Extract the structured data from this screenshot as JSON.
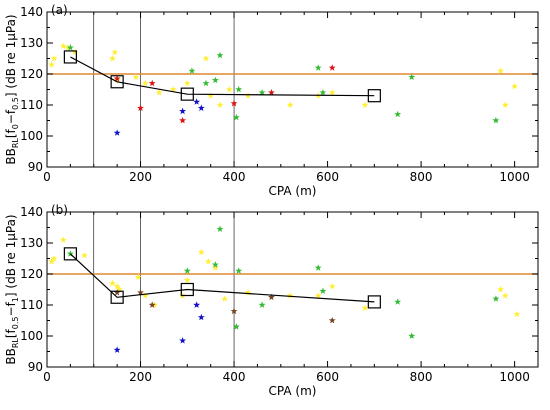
{
  "colors": {
    "yellow": "#ffee33",
    "green": "#33bb33",
    "red": "#dd1111",
    "blue": "#1111cc",
    "brown": "#774422",
    "reference": "#dd8833",
    "mean": "#000000"
  },
  "chart_data": [
    {
      "type": "scatter",
      "panel_label": "(a)",
      "xlabel": "CPA (m)",
      "ylabel": "BB",
      "ylabel_sub": "RL",
      "ylabel_range": "[f",
      "ylabel_range_sub1": "0",
      "ylabel_range_mid": "−f",
      "ylabel_range_sub2": "0.5",
      "ylabel_range_end": "]",
      "ylabel_units": "(dB re 1μPa)",
      "xlim": [
        0,
        1050
      ],
      "ylim": [
        90,
        140
      ],
      "xticks": [
        0,
        200,
        400,
        600,
        800,
        1000
      ],
      "yticks": [
        90,
        100,
        110,
        120,
        130,
        140
      ],
      "vertical_lines": [
        100,
        200,
        400
      ],
      "reference_line": 120,
      "mean_curve": {
        "x": [
          50,
          150,
          300,
          700
        ],
        "y": [
          125.5,
          117.5,
          113.5,
          113
        ]
      },
      "series": [
        {
          "color_key": "yellow",
          "points": [
            [
              10,
              123
            ],
            [
              15,
              125
            ],
            [
              35,
              129
            ],
            [
              45,
              128.5
            ],
            [
              60,
              127
            ],
            [
              140,
              125
            ],
            [
              145,
              127
            ],
            [
              150,
              118
            ],
            [
              190,
              119
            ],
            [
              210,
              117
            ],
            [
              240,
              114
            ],
            [
              270,
              115
            ],
            [
              300,
              117
            ],
            [
              340,
              125
            ],
            [
              350,
              113
            ],
            [
              370,
              110
            ],
            [
              390,
              115
            ],
            [
              430,
              113
            ],
            [
              520,
              110
            ],
            [
              580,
              113
            ],
            [
              610,
              114
            ],
            [
              680,
              110
            ],
            [
              970,
              121
            ],
            [
              980,
              110
            ],
            [
              1000,
              116
            ]
          ]
        },
        {
          "color_key": "green",
          "points": [
            [
              50,
              128.5
            ],
            [
              310,
              121
            ],
            [
              340,
              117
            ],
            [
              360,
              118
            ],
            [
              370,
              126
            ],
            [
              405,
              106
            ],
            [
              410,
              115
            ],
            [
              460,
              114
            ],
            [
              580,
              122
            ],
            [
              590,
              114
            ],
            [
              750,
              107
            ],
            [
              780,
              119
            ],
            [
              960,
              105
            ]
          ]
        },
        {
          "color_key": "red",
          "points": [
            [
              150,
              118.5
            ],
            [
              200,
              109
            ],
            [
              225,
              117
            ],
            [
              290,
              105
            ],
            [
              400,
              110.5
            ],
            [
              480,
              114
            ],
            [
              610,
              122
            ]
          ]
        },
        {
          "color_key": "blue",
          "points": [
            [
              150,
              101
            ],
            [
              290,
              108
            ],
            [
              320,
              111
            ],
            [
              330,
              109
            ]
          ]
        }
      ]
    },
    {
      "type": "scatter",
      "panel_label": "(b)",
      "xlabel": "CPA (m)",
      "ylabel": "BB",
      "ylabel_sub": "RL",
      "ylabel_range": "[f",
      "ylabel_range_sub1": "0.5",
      "ylabel_range_mid": "−f",
      "ylabel_range_sub2": "1",
      "ylabel_range_end": "]",
      "ylabel_units": "(dB re 1μPa)",
      "xlim": [
        0,
        1050
      ],
      "ylim": [
        90,
        140
      ],
      "xticks": [
        0,
        200,
        400,
        600,
        800,
        1000
      ],
      "yticks": [
        90,
        100,
        110,
        120,
        130,
        140
      ],
      "vertical_lines": [
        100,
        200,
        400
      ],
      "reference_line": 120,
      "mean_curve": {
        "x": [
          50,
          150,
          300,
          700
        ],
        "y": [
          126.5,
          112.5,
          115,
          111
        ]
      },
      "series": [
        {
          "color_key": "yellow",
          "points": [
            [
              10,
              124
            ],
            [
              15,
              125
            ],
            [
              35,
              131
            ],
            [
              80,
              126
            ],
            [
              140,
              117
            ],
            [
              150,
              116
            ],
            [
              155,
              115
            ],
            [
              195,
              119
            ],
            [
              210,
              113
            ],
            [
              230,
              110
            ],
            [
              290,
              113
            ],
            [
              300,
              118
            ],
            [
              330,
              127
            ],
            [
              345,
              124
            ],
            [
              360,
              122
            ],
            [
              380,
              112
            ],
            [
              430,
              114
            ],
            [
              520,
              113
            ],
            [
              580,
              113
            ],
            [
              610,
              116
            ],
            [
              680,
              109
            ],
            [
              970,
              115
            ],
            [
              980,
              113
            ],
            [
              1005,
              107
            ]
          ]
        },
        {
          "color_key": "green",
          "points": [
            [
              50,
              126.5
            ],
            [
              300,
              121
            ],
            [
              360,
              123
            ],
            [
              370,
              134.5
            ],
            [
              405,
              103
            ],
            [
              410,
              121
            ],
            [
              460,
              110
            ],
            [
              580,
              122
            ],
            [
              590,
              114.5
            ],
            [
              750,
              111
            ],
            [
              780,
              100
            ],
            [
              960,
              112
            ]
          ]
        },
        {
          "color_key": "brown",
          "points": [
            [
              150,
              114
            ],
            [
              200,
              114
            ],
            [
              225,
              110
            ],
            [
              400,
              108
            ],
            [
              480,
              112.5
            ],
            [
              610,
              105
            ]
          ]
        },
        {
          "color_key": "blue",
          "points": [
            [
              150,
              95.5
            ],
            [
              290,
              98.5
            ],
            [
              320,
              110
            ],
            [
              330,
              106
            ]
          ]
        }
      ]
    }
  ]
}
